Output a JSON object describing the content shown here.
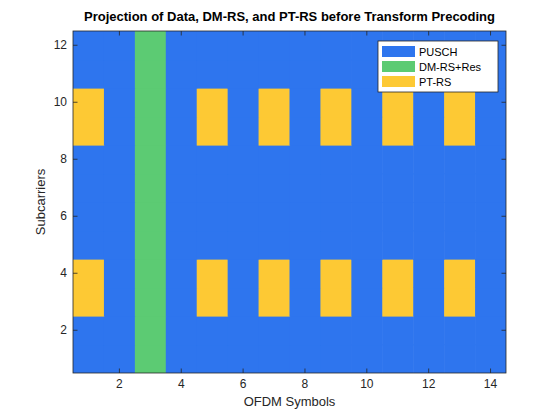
{
  "chart_data": {
    "type": "heatmap",
    "title": "Projection of Data, DM-RS, and PT-RS before Transform Precoding",
    "x_label": "OFDM Symbols",
    "y_label": "Subcarriers",
    "x": [
      1,
      2,
      3,
      4,
      5,
      6,
      7,
      8,
      9,
      10,
      11,
      12,
      13,
      14
    ],
    "y": [
      1,
      2,
      3,
      4,
      5,
      6,
      7,
      8,
      9,
      10,
      11,
      12
    ],
    "cells": [
      [
        1,
        1,
        2,
        1,
        1,
        1,
        1,
        1,
        1,
        1,
        1,
        1,
        1,
        1
      ],
      [
        1,
        1,
        2,
        1,
        1,
        1,
        1,
        1,
        1,
        1,
        1,
        1,
        1,
        1
      ],
      [
        3,
        1,
        2,
        1,
        3,
        1,
        3,
        1,
        3,
        1,
        3,
        1,
        3,
        1
      ],
      [
        3,
        1,
        2,
        1,
        3,
        1,
        3,
        1,
        3,
        1,
        3,
        1,
        3,
        1
      ],
      [
        1,
        1,
        2,
        1,
        1,
        1,
        1,
        1,
        1,
        1,
        1,
        1,
        1,
        1
      ],
      [
        1,
        1,
        2,
        1,
        1,
        1,
        1,
        1,
        1,
        1,
        1,
        1,
        1,
        1
      ],
      [
        1,
        1,
        2,
        1,
        1,
        1,
        1,
        1,
        1,
        1,
        1,
        1,
        1,
        1
      ],
      [
        1,
        1,
        2,
        1,
        1,
        1,
        1,
        1,
        1,
        1,
        1,
        1,
        1,
        1
      ],
      [
        3,
        1,
        2,
        1,
        3,
        1,
        3,
        1,
        3,
        1,
        3,
        1,
        3,
        1
      ],
      [
        3,
        1,
        2,
        1,
        3,
        1,
        3,
        1,
        3,
        1,
        3,
        1,
        3,
        1
      ],
      [
        1,
        1,
        2,
        1,
        1,
        1,
        1,
        1,
        1,
        1,
        1,
        1,
        1,
        1
      ],
      [
        1,
        1,
        2,
        1,
        1,
        1,
        1,
        1,
        1,
        1,
        1,
        1,
        1,
        1
      ]
    ],
    "series": [
      {
        "name": "PUSCH",
        "color": "#2e75ee",
        "value": 1
      },
      {
        "name": "DM-RS+Res",
        "color": "#5ccb73",
        "value": 2
      },
      {
        "name": "PT-RS",
        "color": "#fdc934",
        "value": 3
      }
    ],
    "xlim": [
      0.5,
      14.5
    ],
    "ylim": [
      0.5,
      12.5
    ],
    "xticks": [
      2,
      4,
      6,
      8,
      10,
      12,
      14
    ],
    "yticks": [
      2,
      4,
      6,
      8,
      10,
      12
    ],
    "legend": "northeast"
  }
}
